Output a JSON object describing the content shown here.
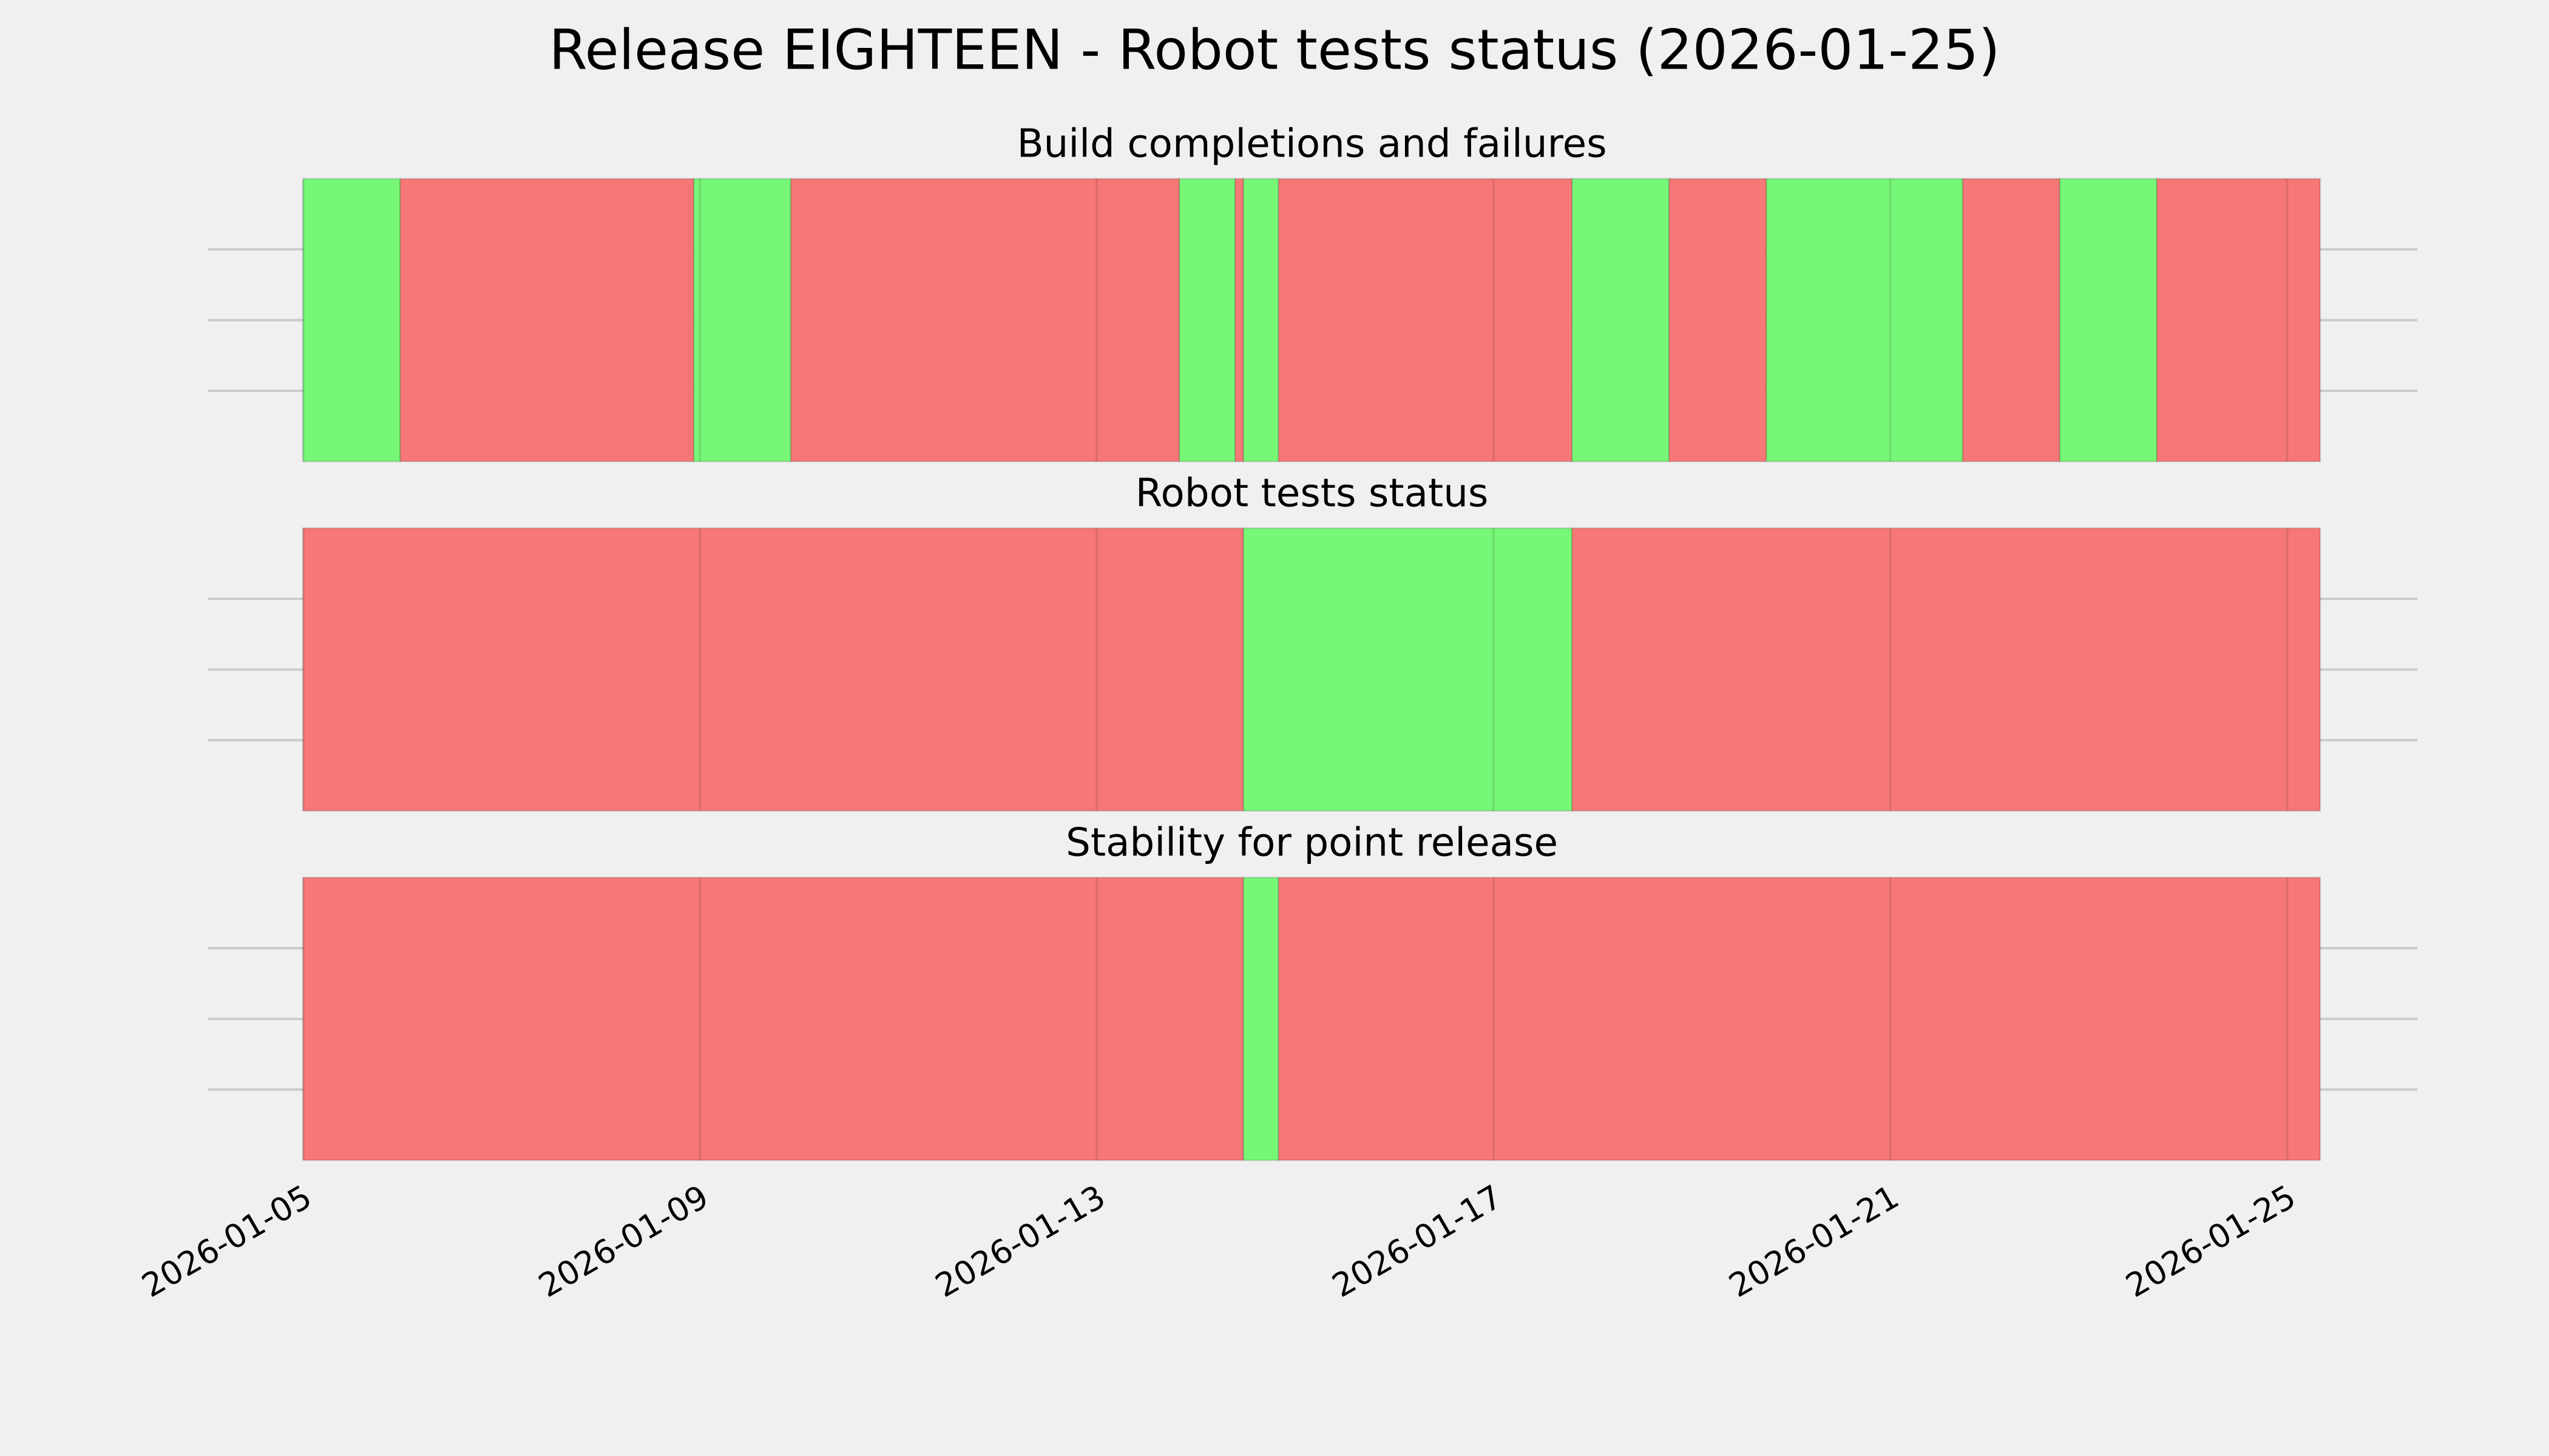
{
  "title": "Release EIGHTEEN - Robot tests status (2026-01-25)",
  "chart_data": [
    {
      "type": "timeline",
      "title": "Build completions and failures",
      "xlim": [
        "2026-01-04 01:00",
        "2026-01-26 07:30"
      ],
      "xticks": [
        "2026-01-05",
        "2026-01-09",
        "2026-01-13",
        "2026-01-17",
        "2026-01-21",
        "2026-01-25"
      ],
      "grid": true,
      "spans": [
        {
          "start": "2026-01-05 00:00",
          "end": "2026-01-05 23:30",
          "color": "#77f777"
        },
        {
          "start": "2026-01-05 23:30",
          "end": "2026-01-08 22:30",
          "color": "#f77777"
        },
        {
          "start": "2026-01-08 22:30",
          "end": "2026-01-09 22:00",
          "color": "#77f777"
        },
        {
          "start": "2026-01-09 22:00",
          "end": "2026-01-13 20:00",
          "color": "#f77777"
        },
        {
          "start": "2026-01-13 20:00",
          "end": "2026-01-14 09:30",
          "color": "#77f777"
        },
        {
          "start": "2026-01-14 09:30",
          "end": "2026-01-14 11:30",
          "color": "#f77777"
        },
        {
          "start": "2026-01-14 11:30",
          "end": "2026-01-14 20:00",
          "color": "#77f777"
        },
        {
          "start": "2026-01-14 20:00",
          "end": "2026-01-17 19:00",
          "color": "#f77777"
        },
        {
          "start": "2026-01-17 19:00",
          "end": "2026-01-18 18:30",
          "color": "#77f777"
        },
        {
          "start": "2026-01-18 18:30",
          "end": "2026-01-19 18:00",
          "color": "#f77777"
        },
        {
          "start": "2026-01-19 18:00",
          "end": "2026-01-21 17:30",
          "color": "#77f777"
        },
        {
          "start": "2026-01-21 17:30",
          "end": "2026-01-22 17:00",
          "color": "#f77777"
        },
        {
          "start": "2026-01-22 17:00",
          "end": "2026-01-23 16:30",
          "color": "#77f777"
        },
        {
          "start": "2026-01-23 16:30",
          "end": "2026-01-25 08:00",
          "color": "#f77777"
        }
      ]
    },
    {
      "type": "timeline",
      "title": "Robot tests status",
      "xlim": [
        "2026-01-04 01:00",
        "2026-01-26 07:30"
      ],
      "xticks": [
        "2026-01-05",
        "2026-01-09",
        "2026-01-13",
        "2026-01-17",
        "2026-01-21",
        "2026-01-25"
      ],
      "grid": true,
      "spans": [
        {
          "start": "2026-01-05 00:00",
          "end": "2026-01-14 11:30",
          "color": "#f77777"
        },
        {
          "start": "2026-01-14 11:30",
          "end": "2026-01-17 19:00",
          "color": "#77f777"
        },
        {
          "start": "2026-01-17 19:00",
          "end": "2026-01-25 08:00",
          "color": "#f77777"
        }
      ]
    },
    {
      "type": "timeline",
      "title": "Stability for point release",
      "xlim": [
        "2026-01-04 01:00",
        "2026-01-26 07:30"
      ],
      "xticks": [
        "2026-01-05",
        "2026-01-09",
        "2026-01-13",
        "2026-01-17",
        "2026-01-21",
        "2026-01-25"
      ],
      "grid": true,
      "spans": [
        {
          "start": "2026-01-05 00:00",
          "end": "2026-01-14 11:30",
          "color": "#f77777"
        },
        {
          "start": "2026-01-14 11:30",
          "end": "2026-01-14 20:00",
          "color": "#77f777"
        },
        {
          "start": "2026-01-14 20:00",
          "end": "2026-01-25 08:00",
          "color": "#f77777"
        }
      ]
    }
  ]
}
